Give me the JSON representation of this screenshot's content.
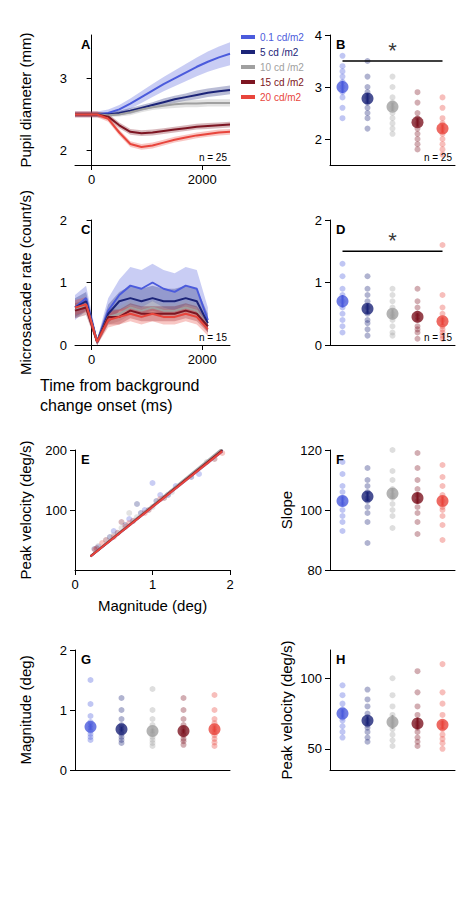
{
  "chart_data": [
    {
      "type": "line",
      "title": "A",
      "ylabel": "Pupil diameter (mm)",
      "x": [
        -300,
        -100,
        100,
        300,
        500,
        700,
        900,
        1100,
        1300,
        1500,
        1700,
        1900,
        2100,
        2300,
        2500
      ],
      "xlim": [
        -300,
        2500
      ],
      "xticks": [
        0,
        2000
      ],
      "ylim": [
        1.8,
        3.6
      ],
      "yticks": [
        2,
        3
      ],
      "grid": false,
      "legend": "right",
      "annotation": "n = 25",
      "series": [
        {
          "name": "0.1 cd/m2",
          "color": "#4b5bdc",
          "values": [
            2.5,
            2.5,
            2.5,
            2.52,
            2.57,
            2.65,
            2.74,
            2.83,
            2.92,
            3.0,
            3.08,
            3.16,
            3.23,
            3.29,
            3.34
          ],
          "error": [
            0.04,
            0.04,
            0.04,
            0.05,
            0.06,
            0.07,
            0.08,
            0.09,
            0.1,
            0.11,
            0.12,
            0.13,
            0.14,
            0.15,
            0.16
          ]
        },
        {
          "name": "5 cd /m2",
          "color": "#1c2478",
          "values": [
            2.5,
            2.5,
            2.5,
            2.5,
            2.52,
            2.55,
            2.59,
            2.63,
            2.67,
            2.71,
            2.74,
            2.77,
            2.8,
            2.82,
            2.84
          ],
          "error": [
            0.03,
            0.03,
            0.03,
            0.03,
            0.03,
            0.04,
            0.04,
            0.04,
            0.05,
            0.05,
            0.05,
            0.06,
            0.06,
            0.06,
            0.06
          ]
        },
        {
          "name": "10 cd /m2",
          "color": "#a0a0a0",
          "values": [
            2.5,
            2.5,
            2.5,
            2.49,
            2.5,
            2.53,
            2.57,
            2.6,
            2.62,
            2.64,
            2.65,
            2.65,
            2.66,
            2.66,
            2.66
          ],
          "error": [
            0.03,
            0.03,
            0.03,
            0.03,
            0.03,
            0.04,
            0.04,
            0.04,
            0.04,
            0.05,
            0.05,
            0.05,
            0.05,
            0.05,
            0.05
          ]
        },
        {
          "name": "15 cd /m2",
          "color": "#7d1522",
          "values": [
            2.5,
            2.5,
            2.5,
            2.47,
            2.35,
            2.26,
            2.24,
            2.25,
            2.27,
            2.29,
            2.31,
            2.33,
            2.34,
            2.35,
            2.36
          ],
          "error": [
            0.04,
            0.04,
            0.04,
            0.04,
            0.04,
            0.04,
            0.04,
            0.04,
            0.04,
            0.04,
            0.04,
            0.04,
            0.04,
            0.04,
            0.04
          ]
        },
        {
          "name": "20 cd/m2",
          "color": "#e8453c",
          "values": [
            2.5,
            2.5,
            2.5,
            2.44,
            2.25,
            2.09,
            2.05,
            2.07,
            2.11,
            2.15,
            2.18,
            2.21,
            2.23,
            2.25,
            2.26
          ],
          "error": [
            0.04,
            0.04,
            0.04,
            0.04,
            0.04,
            0.04,
            0.04,
            0.04,
            0.04,
            0.04,
            0.04,
            0.04,
            0.04,
            0.04,
            0.04
          ]
        }
      ]
    },
    {
      "type": "dot",
      "title": "B",
      "categories": [
        null,
        null,
        null,
        null,
        null
      ],
      "ylim": [
        1.5,
        4
      ],
      "yticks": [
        2,
        3,
        4
      ],
      "grid": false,
      "tick_labels": "y",
      "annotation": "n = 25",
      "colors": [
        "#4b5bdc",
        "#1c2478",
        "#a0a0a0",
        "#7d1522",
        "#e8453c"
      ],
      "values": [
        3.0,
        2.78,
        2.62,
        2.32,
        2.2
      ],
      "errors": [
        0.12,
        0.1,
        0.08,
        0.08,
        0.08
      ],
      "points": [
        [
          3.6,
          3.4,
          3.3,
          3.2,
          3.1,
          3.0,
          2.9,
          2.8,
          2.6,
          2.4
        ],
        [
          3.5,
          3.2,
          3.0,
          2.9,
          2.8,
          2.7,
          2.6,
          2.5,
          2.4,
          2.2
        ],
        [
          3.2,
          3.0,
          2.8,
          2.7,
          2.6,
          2.5,
          2.4,
          2.3,
          2.2,
          2.1
        ],
        [
          2.9,
          2.7,
          2.5,
          2.4,
          2.3,
          2.2,
          2.1,
          2.0,
          1.9,
          1.8
        ],
        [
          2.8,
          2.6,
          2.4,
          2.3,
          2.2,
          2.1,
          2.0,
          1.9,
          1.8,
          1.7
        ]
      ],
      "significance": {
        "y": 3.5,
        "label": "*"
      }
    },
    {
      "type": "line",
      "title": "C",
      "ylabel": "Microsaccade rate (count/s)",
      "xlabel": "Time from background change onset (ms)",
      "x": [
        -300,
        -100,
        100,
        300,
        500,
        700,
        900,
        1100,
        1300,
        1500,
        1700,
        1900,
        2100,
        2300,
        2500
      ],
      "xlim": [
        -300,
        2500
      ],
      "xticks": [
        0,
        2000
      ],
      "ylim": [
        0,
        2
      ],
      "yticks": [
        0,
        1,
        2
      ],
      "grid": false,
      "annotation": "n = 15",
      "series": [
        {
          "color": "#4b5bdc",
          "values": [
            0.6,
            0.75,
            0.05,
            0.55,
            0.8,
            0.95,
            0.9,
            1.0,
            0.9,
            0.85,
            0.95,
            0.9,
            0.4,
            null,
            null
          ],
          "error": [
            0.2,
            0.2,
            0.05,
            0.2,
            0.25,
            0.3,
            0.3,
            0.3,
            0.3,
            0.3,
            0.3,
            0.3,
            0.2,
            null,
            null
          ]
        },
        {
          "color": "#1c2478",
          "values": [
            0.6,
            0.7,
            0.05,
            0.5,
            0.7,
            0.75,
            0.7,
            0.75,
            0.7,
            0.7,
            0.75,
            0.7,
            0.35,
            null,
            null
          ],
          "error": [
            0.15,
            0.15,
            0.05,
            0.15,
            0.15,
            0.2,
            0.2,
            0.2,
            0.2,
            0.2,
            0.2,
            0.2,
            0.15,
            null,
            null
          ]
        },
        {
          "color": "#a0a0a0",
          "values": [
            0.55,
            0.65,
            0.05,
            0.45,
            0.5,
            0.6,
            0.55,
            0.6,
            0.55,
            0.55,
            0.6,
            0.55,
            0.3,
            null,
            null
          ],
          "error": [
            0.12,
            0.12,
            0.05,
            0.12,
            0.12,
            0.12,
            0.12,
            0.12,
            0.12,
            0.12,
            0.12,
            0.12,
            0.1,
            null,
            null
          ]
        },
        {
          "color": "#7d1522",
          "values": [
            0.55,
            0.6,
            0.05,
            0.45,
            0.45,
            0.55,
            0.5,
            0.5,
            0.5,
            0.5,
            0.55,
            0.5,
            0.3,
            null,
            null
          ],
          "error": [
            0.12,
            0.12,
            0.05,
            0.12,
            0.12,
            0.12,
            0.12,
            0.12,
            0.12,
            0.12,
            0.12,
            0.12,
            0.1,
            null,
            null
          ]
        },
        {
          "color": "#e8453c",
          "values": [
            0.6,
            0.65,
            0.05,
            0.4,
            0.45,
            0.5,
            0.45,
            0.5,
            0.45,
            0.45,
            0.5,
            0.45,
            0.25,
            null,
            null
          ],
          "error": [
            0.12,
            0.12,
            0.05,
            0.12,
            0.12,
            0.12,
            0.12,
            0.12,
            0.12,
            0.12,
            0.12,
            0.12,
            0.1,
            null,
            null
          ]
        }
      ]
    },
    {
      "type": "dot",
      "title": "D",
      "categories": [
        null,
        null,
        null,
        null,
        null
      ],
      "ylim": [
        0,
        2
      ],
      "yticks": [
        0,
        1,
        2
      ],
      "grid": false,
      "tick_labels": "y",
      "annotation": "n = 15",
      "colors": [
        "#4b5bdc",
        "#1c2478",
        "#a0a0a0",
        "#7d1522",
        "#e8453c"
      ],
      "values": [
        0.7,
        0.58,
        0.5,
        0.45,
        0.38
      ],
      "errors": [
        0.1,
        0.08,
        0.07,
        0.06,
        0.06
      ],
      "points": [
        [
          1.3,
          1.1,
          0.9,
          0.8,
          0.7,
          0.6,
          0.5,
          0.4,
          0.3,
          0.2
        ],
        [
          1.1,
          0.9,
          0.8,
          0.7,
          0.6,
          0.5,
          0.4,
          0.35,
          0.25,
          0.15
        ],
        [
          0.9,
          0.8,
          0.7,
          0.6,
          0.5,
          0.45,
          0.4,
          0.3,
          0.2,
          0.15
        ],
        [
          0.9,
          0.7,
          0.6,
          0.5,
          0.45,
          0.4,
          0.3,
          0.25,
          0.2,
          0.1
        ],
        [
          1.6,
          0.8,
          0.6,
          0.5,
          0.4,
          0.3,
          0.25,
          0.2,
          0.15,
          0.1
        ]
      ],
      "significance": {
        "y": 1.5,
        "label": "*"
      }
    },
    {
      "type": "scatter",
      "title": "E",
      "xlabel": "Magnitude (deg)",
      "ylabel": "Peak velocity (deg/s)",
      "xlim": [
        0,
        2
      ],
      "xticks": [
        0,
        1,
        2
      ],
      "ylim": [
        0,
        200
      ],
      "yticks": [
        100,
        200
      ],
      "grid": false,
      "series": [
        {
          "color": "#4b5bdc",
          "points": [
            [
              0.3,
              38
            ],
            [
              0.5,
              65
            ],
            [
              0.7,
              85
            ],
            [
              0.9,
              100
            ],
            [
              1.1,
              125
            ],
            [
              1.3,
              140
            ],
            [
              1.6,
              160
            ],
            [
              1.0,
              145
            ]
          ],
          "fit": {
            "slope": 103,
            "intercept": 2,
            "x": [
              0.2,
              1.9
            ]
          }
        },
        {
          "color": "#1c2478",
          "points": [
            [
              0.25,
              35
            ],
            [
              0.45,
              55
            ],
            [
              0.65,
              75
            ],
            [
              0.85,
              95
            ],
            [
              1.05,
              115
            ],
            [
              1.2,
              125
            ],
            [
              1.5,
              155
            ],
            [
              0.8,
              110
            ]
          ],
          "fit": {
            "slope": 104.5,
            "intercept": 2,
            "x": [
              0.2,
              1.9
            ]
          }
        },
        {
          "color": "#a0a0a0",
          "points": [
            [
              0.3,
              40
            ],
            [
              0.5,
              58
            ],
            [
              0.6,
              70
            ],
            [
              0.8,
              88
            ],
            [
              1.0,
              105
            ],
            [
              1.25,
              130
            ],
            [
              1.7,
              180
            ],
            [
              0.7,
              95
            ]
          ],
          "fit": {
            "slope": 105.5,
            "intercept": 2,
            "x": [
              0.2,
              1.9
            ]
          }
        },
        {
          "color": "#7d1522",
          "points": [
            [
              0.28,
              36
            ],
            [
              0.4,
              50
            ],
            [
              0.55,
              62
            ],
            [
              0.75,
              82
            ],
            [
              0.95,
              100
            ],
            [
              1.15,
              120
            ],
            [
              1.8,
              185
            ],
            [
              0.6,
              80
            ]
          ],
          "fit": {
            "slope": 104,
            "intercept": 2,
            "x": [
              0.2,
              1.9
            ]
          }
        },
        {
          "color": "#e8453c",
          "points": [
            [
              0.26,
              34
            ],
            [
              0.35,
              45
            ],
            [
              0.5,
              55
            ],
            [
              0.7,
              78
            ],
            [
              0.9,
              95
            ],
            [
              1.1,
              118
            ],
            [
              1.9,
              195
            ],
            [
              0.65,
              72
            ]
          ],
          "fit": {
            "slope": 103,
            "intercept": 2,
            "x": [
              0.2,
              1.9
            ]
          }
        }
      ]
    },
    {
      "type": "dot",
      "title": "F",
      "ylabel": "Slope",
      "categories": [
        null,
        null,
        null,
        null,
        null
      ],
      "ylim": [
        80,
        120
      ],
      "yticks": [
        80,
        100,
        120
      ],
      "grid": false,
      "tick_labels": "y",
      "colors": [
        "#4b5bdc",
        "#1c2478",
        "#a0a0a0",
        "#7d1522",
        "#e8453c"
      ],
      "values": [
        103,
        104.5,
        105.5,
        104,
        103
      ],
      "errors": [
        1.5,
        1.5,
        1.8,
        1.8,
        1.5
      ],
      "points": [
        [
          116,
          112,
          108,
          106,
          104,
          102,
          100,
          98,
          96,
          93
        ],
        [
          114,
          110,
          108,
          106,
          104,
          103,
          101,
          99,
          96,
          89
        ],
        [
          120,
          113,
          110,
          107,
          105,
          104,
          102,
          100,
          98,
          94
        ],
        [
          119,
          114,
          110,
          107,
          105,
          103,
          101,
          99,
          96,
          92
        ],
        [
          115,
          111,
          108,
          105,
          103,
          101,
          100,
          98,
          95,
          90
        ]
      ]
    },
    {
      "type": "dot",
      "title": "G",
      "ylabel": "Magnitude (deg)",
      "categories": [
        null,
        null,
        null,
        null,
        null
      ],
      "ylim": [
        0,
        2
      ],
      "yticks": [
        0,
        1,
        2
      ],
      "grid": false,
      "tick_labels": "y",
      "colors": [
        "#4b5bdc",
        "#1c2478",
        "#a0a0a0",
        "#7d1522",
        "#e8453c"
      ],
      "values": [
        0.72,
        0.68,
        0.65,
        0.65,
        0.68
      ],
      "errors": [
        0.05,
        0.04,
        0.04,
        0.04,
        0.05
      ],
      "points": [
        [
          1.5,
          1.1,
          0.9,
          0.8,
          0.75,
          0.7,
          0.65,
          0.6,
          0.55,
          0.5
        ],
        [
          1.2,
          1.0,
          0.85,
          0.75,
          0.7,
          0.65,
          0.6,
          0.55,
          0.5,
          0.45
        ],
        [
          1.35,
          1.0,
          0.85,
          0.75,
          0.65,
          0.6,
          0.55,
          0.5,
          0.45,
          0.4
        ],
        [
          1.2,
          1.0,
          0.85,
          0.75,
          0.68,
          0.62,
          0.58,
          0.52,
          0.48,
          0.42
        ],
        [
          1.25,
          1.0,
          0.85,
          0.78,
          0.7,
          0.64,
          0.58,
          0.52,
          0.46,
          0.4
        ]
      ]
    },
    {
      "type": "dot",
      "title": "H",
      "ylabel": "Peak velocity (deg/s)",
      "categories": [
        null,
        null,
        null,
        null,
        null
      ],
      "ylim": [
        35,
        120
      ],
      "yticks": [
        50,
        100
      ],
      "grid": false,
      "tick_labels": "y",
      "colors": [
        "#4b5bdc",
        "#1c2478",
        "#a0a0a0",
        "#7d1522",
        "#e8453c"
      ],
      "values": [
        75,
        70,
        69,
        68,
        67
      ],
      "errors": [
        3,
        3,
        5,
        4,
        3
      ],
      "points": [
        [
          95,
          88,
          82,
          78,
          75,
          72,
          70,
          66,
          62,
          58
        ],
        [
          92,
          85,
          80,
          75,
          70,
          67,
          65,
          62,
          58,
          55
        ],
        [
          100,
          88,
          80,
          74,
          70,
          67,
          64,
          60,
          56,
          52
        ],
        [
          105,
          90,
          80,
          74,
          68,
          65,
          62,
          58,
          55,
          52
        ],
        [
          110,
          90,
          82,
          74,
          68,
          64,
          60,
          57,
          54,
          50
        ]
      ]
    }
  ]
}
